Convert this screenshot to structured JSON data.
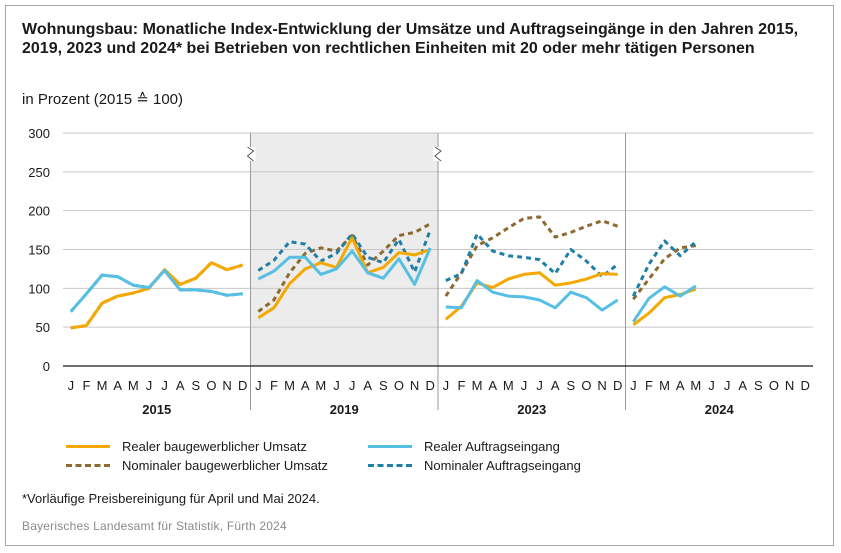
{
  "header": {
    "title": "Wohnungsbau: Monatliche Index-Entwicklung der Umsätze und Auftragseingänge in den Jahren 2015, 2019, 2023 und 2024* bei Betrieben von rechtlichen Einheiten mit 20 oder mehr tätigen Personen",
    "subtitle": "in Prozent (2015 ≙ 100)"
  },
  "footnote": "*Vorläufige Preisbereinigung für April und Mai 2024.",
  "source": "Bayerisches Landesamt für Statistik, Fürth 2024",
  "colors": {
    "orange": "#f5a800",
    "lightblue": "#56bfe3",
    "brown": "#8c6a30",
    "darkblue": "#1f7fa6",
    "shade": "#ececec",
    "grid": "#c8c8c8"
  },
  "chart_data": {
    "type": "line",
    "ylim": [
      0,
      300
    ],
    "yticks": [
      0,
      50,
      100,
      150,
      200,
      250,
      300
    ],
    "grid": true,
    "legend_position": "bottom",
    "months": [
      "J",
      "F",
      "M",
      "A",
      "M",
      "J",
      "J",
      "A",
      "S",
      "O",
      "N",
      "D"
    ],
    "years": [
      "2015",
      "2019",
      "2023",
      "2024"
    ],
    "shaded_years": [
      "2019"
    ],
    "axis_breaks_after": [
      "2015",
      "2019"
    ],
    "series": [
      {
        "name": "Realer baugewerblicher Umsatz",
        "style": "solid",
        "color": "#f5a800",
        "values": [
          [
            49,
            52,
            81,
            90,
            94,
            100,
            124,
            105,
            113,
            133,
            124,
            130
          ],
          [
            62,
            75,
            106,
            125,
            133,
            127,
            165,
            120,
            127,
            146,
            143,
            150
          ],
          [
            60,
            77,
            107,
            101,
            112,
            118,
            120,
            104,
            107,
            112,
            119,
            118
          ],
          [
            53,
            68,
            88,
            92,
            99
          ]
        ]
      },
      {
        "name": "Realer Auftragseingang",
        "style": "solid",
        "color": "#56bfe3",
        "values": [
          [
            70,
            93,
            117,
            115,
            104,
            101,
            123,
            98,
            98,
            96,
            91,
            93
          ],
          [
            112,
            122,
            140,
            140,
            118,
            125,
            148,
            120,
            113,
            138,
            105,
            152
          ],
          [
            76,
            75,
            110,
            95,
            90,
            89,
            85,
            75,
            95,
            88,
            72,
            85
          ],
          [
            57,
            87,
            102,
            90,
            103
          ]
        ]
      },
      {
        "name": "Nominaler baugewerblicher Umsatz",
        "style": "dashed",
        "color": "#8c6a30",
        "values": [
          [
            49,
            52,
            81,
            90,
            94,
            100,
            124,
            105,
            113,
            133,
            124,
            130
          ],
          [
            70,
            85,
            120,
            145,
            152,
            148,
            168,
            130,
            148,
            168,
            172,
            183
          ],
          [
            90,
            120,
            155,
            165,
            178,
            190,
            192,
            166,
            172,
            180,
            187,
            180
          ],
          [
            86,
            112,
            138,
            152,
            155
          ]
        ]
      },
      {
        "name": "Nominaler Auftragseingang",
        "style": "dashed",
        "color": "#1f7fa6",
        "values": [
          [
            70,
            93,
            117,
            115,
            104,
            101,
            123,
            98,
            98,
            96,
            91,
            93
          ],
          [
            123,
            136,
            160,
            157,
            135,
            145,
            170,
            140,
            133,
            163,
            121,
            175
          ],
          [
            110,
            119,
            170,
            148,
            142,
            140,
            137,
            119,
            150,
            135,
            115,
            131
          ],
          [
            90,
            131,
            161,
            142,
            160
          ]
        ]
      }
    ]
  },
  "legend": [
    {
      "label": "Realer baugewerblicher Umsatz",
      "color": "#f5a800",
      "style": "solid"
    },
    {
      "label": "Realer Auftragseingang",
      "color": "#56bfe3",
      "style": "solid"
    },
    {
      "label": "Nominaler baugewerblicher Umsatz",
      "color": "#8c6a30",
      "style": "dashed"
    },
    {
      "label": "Nominaler Auftragseingang",
      "color": "#1f7fa6",
      "style": "dashed"
    }
  ]
}
